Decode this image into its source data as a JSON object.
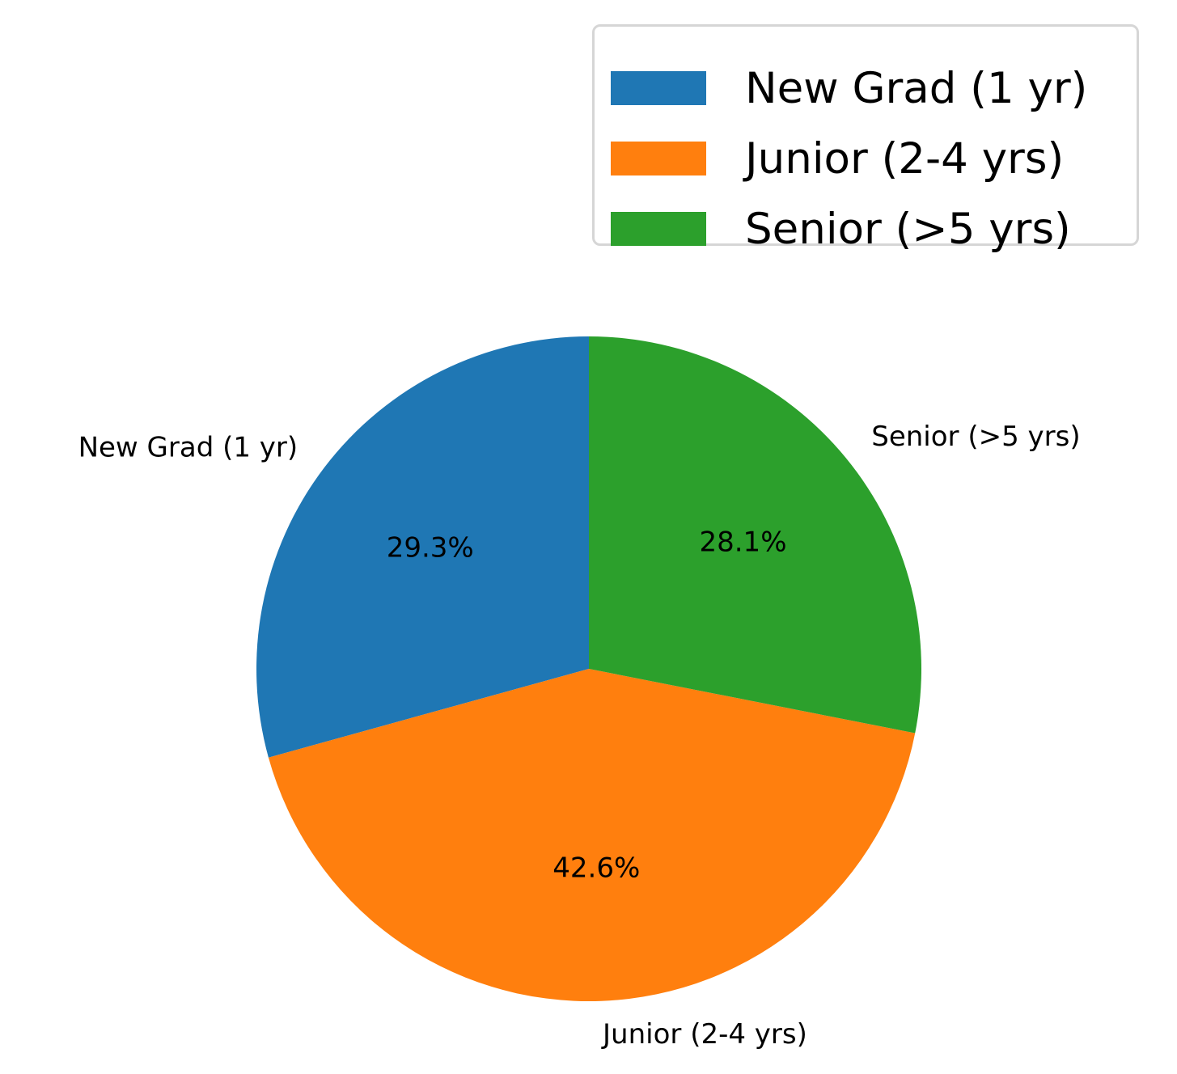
{
  "chart_data": {
    "type": "pie",
    "categories": [
      "New Grad (1 yr)",
      "Junior (2-4 yrs)",
      "Senior (>5 yrs)"
    ],
    "values": [
      29.3,
      42.6,
      28.1
    ],
    "percent_labels": [
      "29.3%",
      "42.6%",
      "28.1%"
    ],
    "colors": [
      "#1f77b4",
      "#ff7f0e",
      "#2ca02c"
    ],
    "start_angle_deg": 90,
    "direction": "counterclockwise",
    "legend": {
      "placement": "top-right",
      "entries": [
        "New Grad (1 yr)",
        "Junior (2-4 yrs)",
        "Senior (>5 yrs)"
      ]
    }
  }
}
